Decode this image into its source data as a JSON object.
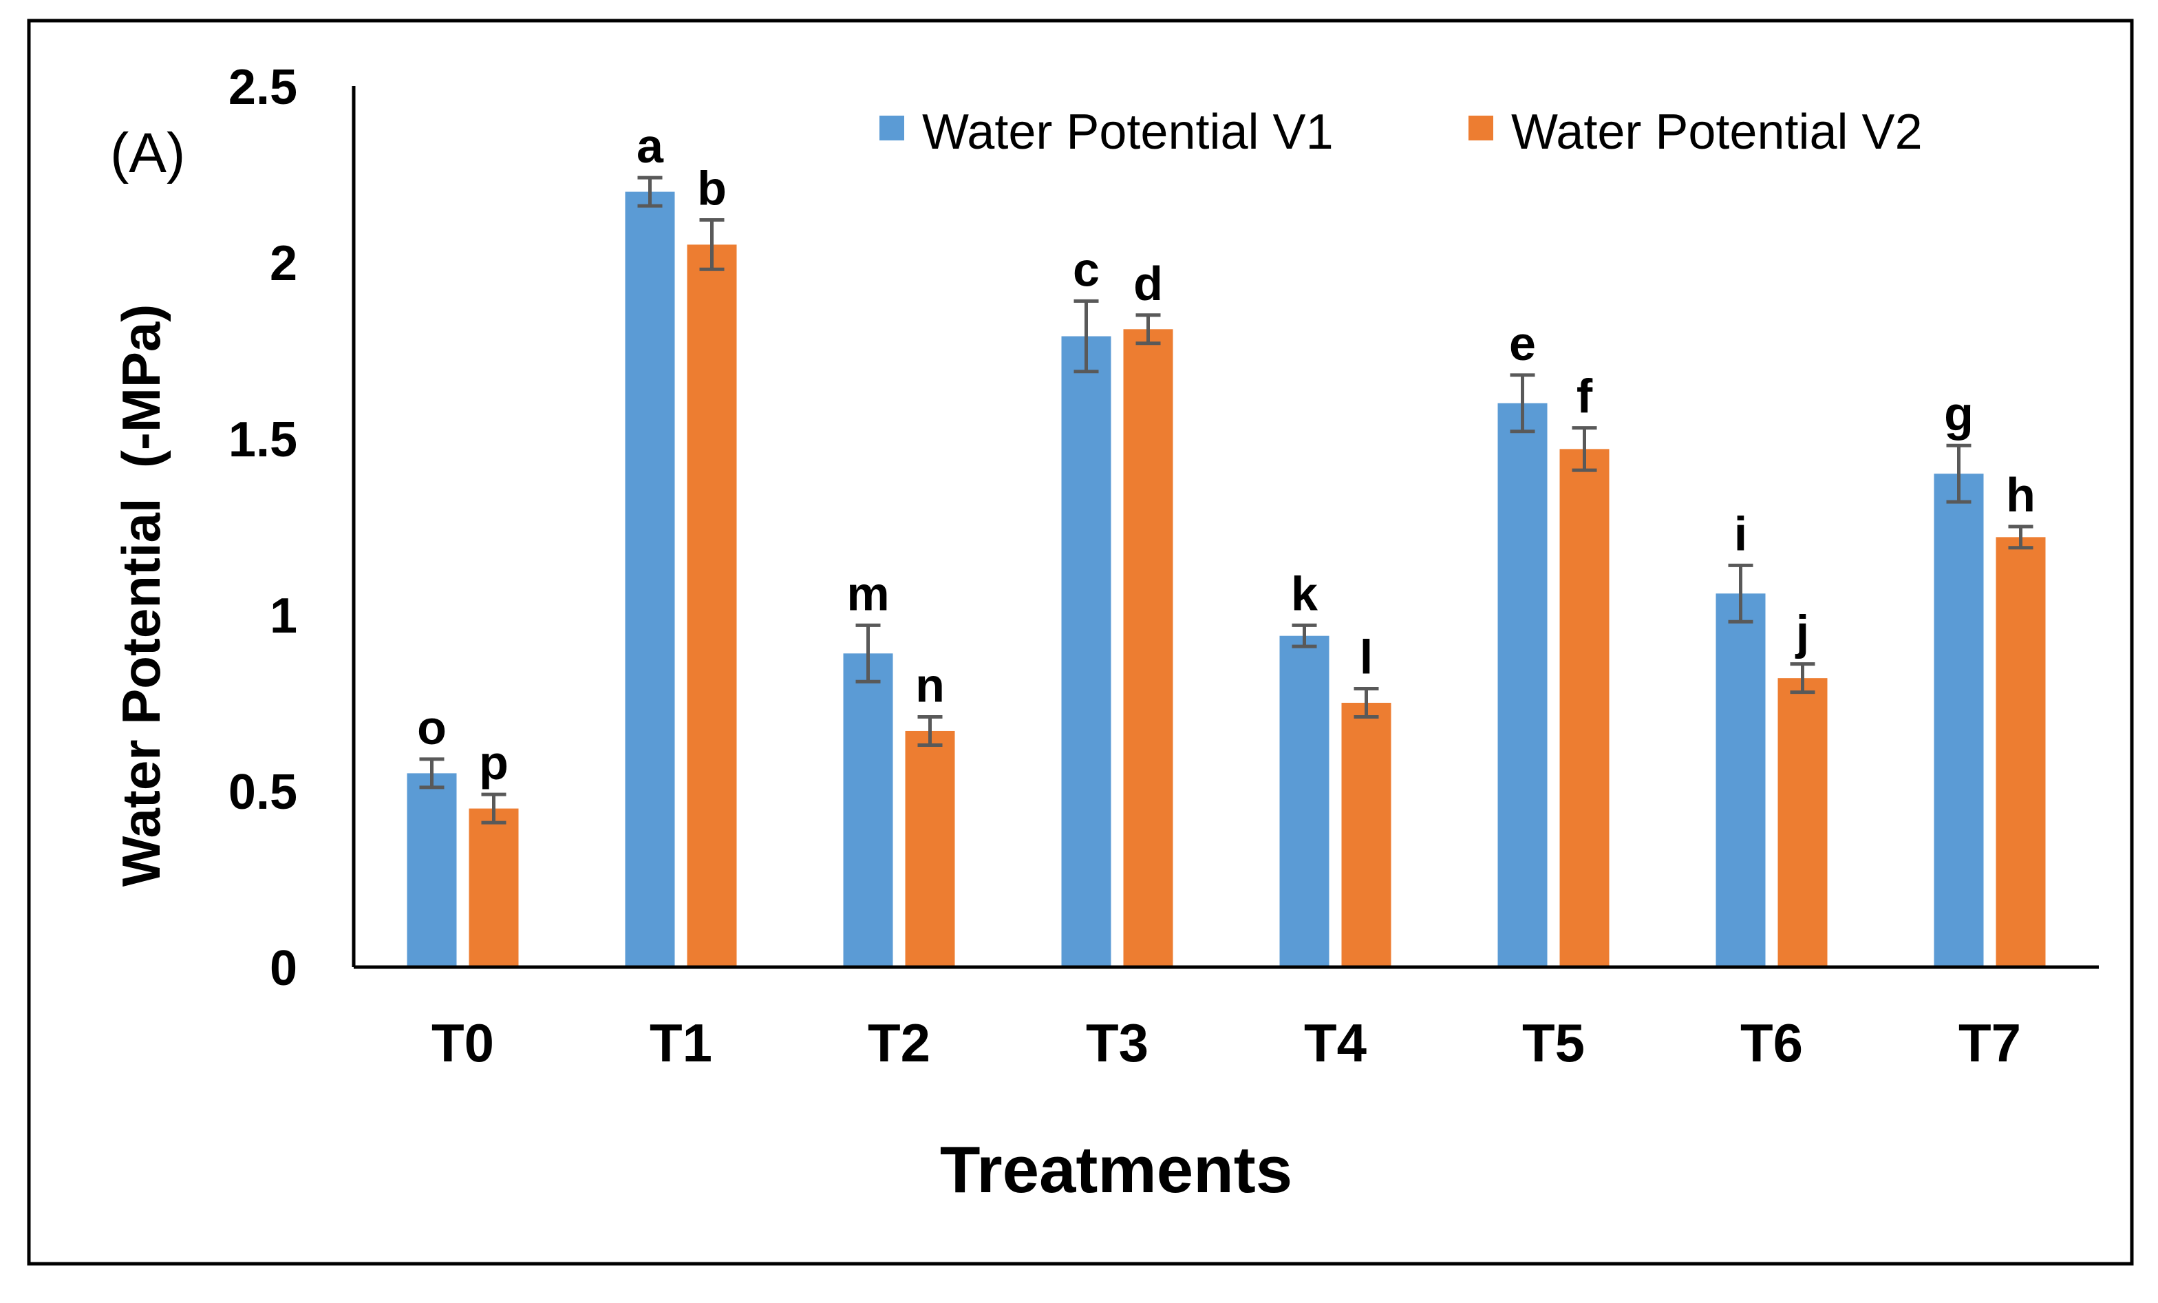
{
  "panel_label": "(A)",
  "chart_data": {
    "type": "bar",
    "title": "",
    "xlabel": "Treatments",
    "ylabel": "Water Potential  (-MPa)",
    "ylim": [
      0,
      2.5
    ],
    "yticks": [
      "0",
      "0.5",
      "1",
      "1.5",
      "2",
      "2.5"
    ],
    "grid": false,
    "legend_position": "top-right",
    "categories": [
      "T0",
      "T1",
      "T2",
      "T3",
      "T4",
      "T5",
      "T6",
      "T7"
    ],
    "series": [
      {
        "name": "Water Potential V1",
        "color": "#5B9BD5",
        "values": [
          0.55,
          2.2,
          0.89,
          1.79,
          0.94,
          1.6,
          1.06,
          1.4
        ],
        "errors": [
          0.04,
          0.04,
          0.08,
          0.1,
          0.03,
          0.08,
          0.08,
          0.08
        ],
        "letters": [
          "o",
          "a",
          "m",
          "c",
          "k",
          "e",
          "i",
          "g"
        ]
      },
      {
        "name": "Water Potential V2",
        "color": "#ED7D31",
        "values": [
          0.45,
          2.05,
          0.67,
          1.81,
          0.75,
          1.47,
          0.82,
          1.22
        ],
        "errors": [
          0.04,
          0.07,
          0.04,
          0.04,
          0.04,
          0.06,
          0.04,
          0.03
        ],
        "letters": [
          "p",
          "b",
          "n",
          "d",
          "l",
          "f",
          "j",
          "h"
        ]
      }
    ]
  }
}
